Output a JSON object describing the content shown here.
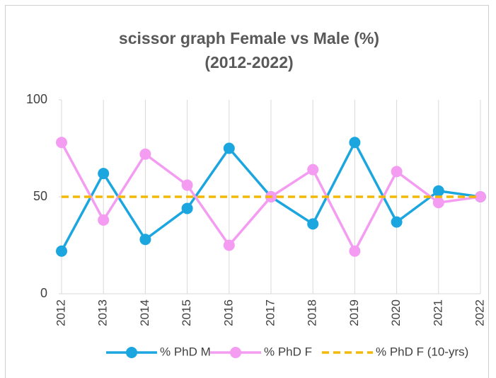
{
  "chart_data": {
    "type": "line",
    "title": [
      "scissor graph Female vs Male (%)",
      "(2012-2022)"
    ],
    "categories": [
      "2012",
      "2013",
      "2014",
      "2015",
      "2016",
      "2017",
      "2018",
      "2019",
      "2020",
      "2021",
      "2022"
    ],
    "series": [
      {
        "name": "% PhD M",
        "color": "#1ba6df",
        "marker": true,
        "dashed": false,
        "values": [
          22,
          62,
          28,
          44,
          75,
          50,
          36,
          78,
          37,
          53,
          50
        ]
      },
      {
        "name": "% PhD F",
        "color": "#f49cf2",
        "marker": true,
        "dashed": false,
        "values": [
          78,
          38,
          72,
          56,
          25,
          50,
          64,
          22,
          63,
          47,
          50
        ]
      },
      {
        "name": "% PhD F (10-yrs)",
        "color": "#f5b800",
        "marker": false,
        "dashed": true,
        "values": [
          50,
          50,
          50,
          50,
          50,
          50,
          50,
          50,
          50,
          50,
          50
        ]
      }
    ],
    "ylim": [
      0,
      100
    ],
    "yticks": [
      0,
      50,
      100
    ],
    "grid": "x",
    "legend": "bottom"
  }
}
